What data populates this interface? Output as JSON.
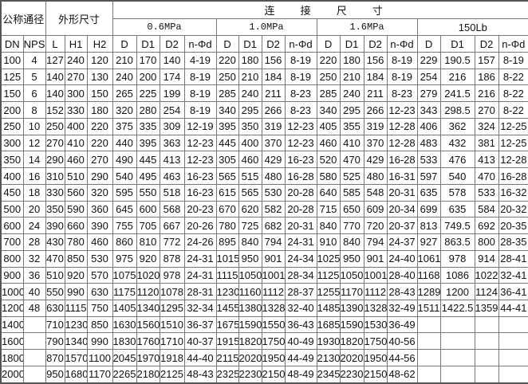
{
  "header": {
    "nominal_diameter": "公称通径",
    "overall_dimensions": "外形尺寸",
    "connection_dimensions": "连 接 尺 寸",
    "pressure_groups": [
      "0.6MPa",
      "1.0MPa",
      "1.6MPa",
      "150Lb"
    ],
    "columns": [
      "DN",
      "NPS",
      "L",
      "H1",
      "H2",
      "D",
      "D1",
      "D2",
      "n-Φd",
      "D",
      "D1",
      "D2",
      "n-Φd",
      "D",
      "D1",
      "D2",
      "n-Φd",
      "D",
      "D1",
      "D2",
      "n-Φd"
    ]
  },
  "rows": [
    [
      "100",
      "4",
      "127",
      "240",
      "120",
      "210",
      "170",
      "140",
      "4-19",
      "220",
      "180",
      "156",
      "8-19",
      "220",
      "180",
      "156",
      "8-19",
      "229",
      "190.5",
      "157",
      "8-19"
    ],
    [
      "125",
      "5",
      "140",
      "270",
      "130",
      "240",
      "200",
      "174",
      "8-19",
      "250",
      "210",
      "184",
      "8-19",
      "250",
      "210",
      "184",
      "8-19",
      "254",
      "216",
      "186",
      "8-22"
    ],
    [
      "150",
      "6",
      "140",
      "300",
      "150",
      "265",
      "225",
      "199",
      "8-19",
      "285",
      "240",
      "211",
      "8-23",
      "285",
      "240",
      "211",
      "8-23",
      "279",
      "241.5",
      "216",
      "8-22"
    ],
    [
      "200",
      "8",
      "152",
      "330",
      "180",
      "320",
      "280",
      "254",
      "8-19",
      "340",
      "295",
      "266",
      "8-23",
      "340",
      "295",
      "266",
      "12-23",
      "343",
      "298.5",
      "270",
      "8-22"
    ],
    [
      "250",
      "10",
      "250",
      "400",
      "220",
      "375",
      "335",
      "309",
      "12-19",
      "395",
      "350",
      "319",
      "12-23",
      "405",
      "355",
      "319",
      "12-28",
      "406",
      "362",
      "324",
      "12-25"
    ],
    [
      "300",
      "12",
      "270",
      "410",
      "220",
      "440",
      "395",
      "363",
      "12-23",
      "445",
      "400",
      "370",
      "12-23",
      "460",
      "410",
      "370",
      "12-28",
      "483",
      "432",
      "381",
      "12-25"
    ],
    [
      "350",
      "14",
      "290",
      "460",
      "270",
      "490",
      "445",
      "413",
      "12-23",
      "305",
      "460",
      "429",
      "16-23",
      "520",
      "470",
      "429",
      "16-28",
      "533",
      "476",
      "413",
      "12-28"
    ],
    [
      "400",
      "16",
      "310",
      "510",
      "290",
      "540",
      "495",
      "463",
      "16-23",
      "565",
      "515",
      "480",
      "16-28",
      "580",
      "525",
      "480",
      "16-31",
      "597",
      "540",
      "470",
      "16-28"
    ],
    [
      "450",
      "18",
      "330",
      "560",
      "320",
      "595",
      "550",
      "518",
      "16-23",
      "615",
      "565",
      "530",
      "20-28",
      "640",
      "585",
      "548",
      "20-31",
      "635",
      "578",
      "533",
      "16-32"
    ],
    [
      "500",
      "20",
      "350",
      "590",
      "360",
      "645",
      "600",
      "568",
      "20-23",
      "670",
      "620",
      "582",
      "20-28",
      "715",
      "650",
      "609",
      "20-34",
      "699",
      "635",
      "584",
      "20-32"
    ],
    [
      "600",
      "24",
      "390",
      "660",
      "390",
      "755",
      "705",
      "667",
      "20-26",
      "780",
      "725",
      "682",
      "20-31",
      "840",
      "770",
      "720",
      "20-37",
      "813",
      "749.5",
      "692",
      "20-35"
    ],
    [
      "700",
      "28",
      "430",
      "780",
      "460",
      "860",
      "810",
      "772",
      "24-26",
      "895",
      "840",
      "794",
      "24-31",
      "910",
      "840",
      "794",
      "24-37",
      "927",
      "863.5",
      "800",
      "28-35"
    ],
    [
      "800",
      "32",
      "470",
      "850",
      "530",
      "975",
      "920",
      "878",
      "24-31",
      "1015",
      "950",
      "901",
      "24-34",
      "1025",
      "950",
      "901",
      "24-40",
      "1061",
      "978",
      "914",
      "28-41"
    ],
    [
      "900",
      "36",
      "510",
      "920",
      "570",
      "1075",
      "1020",
      "978",
      "24-31",
      "1115",
      "1050",
      "1001",
      "28-34",
      "1125",
      "1050",
      "1001",
      "28-40",
      "1168",
      "1086",
      "1022",
      "32-41"
    ],
    [
      "1000",
      "40",
      "550",
      "990",
      "630",
      "1175",
      "1120",
      "1078",
      "28-31",
      "1230",
      "1160",
      "1112",
      "28-37",
      "1255",
      "1170",
      "1112",
      "28-43",
      "1289",
      "1200",
      "1124",
      "36-41"
    ],
    [
      "1200",
      "48",
      "630",
      "1115",
      "750",
      "1405",
      "1340",
      "1295",
      "32-34",
      "1455",
      "1380",
      "1328",
      "32-40",
      "1485",
      "1390",
      "1328",
      "32-49",
      "1511",
      "1422.5",
      "1359",
      "44-41"
    ],
    [
      "1400",
      "",
      "710",
      "1230",
      "850",
      "1630",
      "1560",
      "1510",
      "36-37",
      "1675",
      "1590",
      "1550",
      "36-43",
      "1685",
      "1590",
      "1530",
      "36-49",
      "",
      "",
      "",
      ""
    ],
    [
      "1600",
      "",
      "790",
      "1340",
      "990",
      "1830",
      "1760",
      "1710",
      "40-37",
      "1915",
      "1820",
      "1750",
      "40-49",
      "1930",
      "1820",
      "1750",
      "40-56",
      "",
      "",
      "",
      ""
    ],
    [
      "1800",
      "",
      "870",
      "1570",
      "1100",
      "2045",
      "1970",
      "1918",
      "44-40",
      "2115",
      "2020",
      "1950",
      "44-49",
      "2130",
      "2020",
      "1950",
      "44-56",
      "",
      "",
      "",
      ""
    ],
    [
      "2000",
      "",
      "950",
      "1680",
      "1170",
      "2265",
      "2180",
      "2125",
      "48-43",
      "2325",
      "2230",
      "2150",
      "48-49",
      "2345",
      "2230",
      "2150",
      "48-62",
      "",
      "",
      "",
      ""
    ]
  ]
}
